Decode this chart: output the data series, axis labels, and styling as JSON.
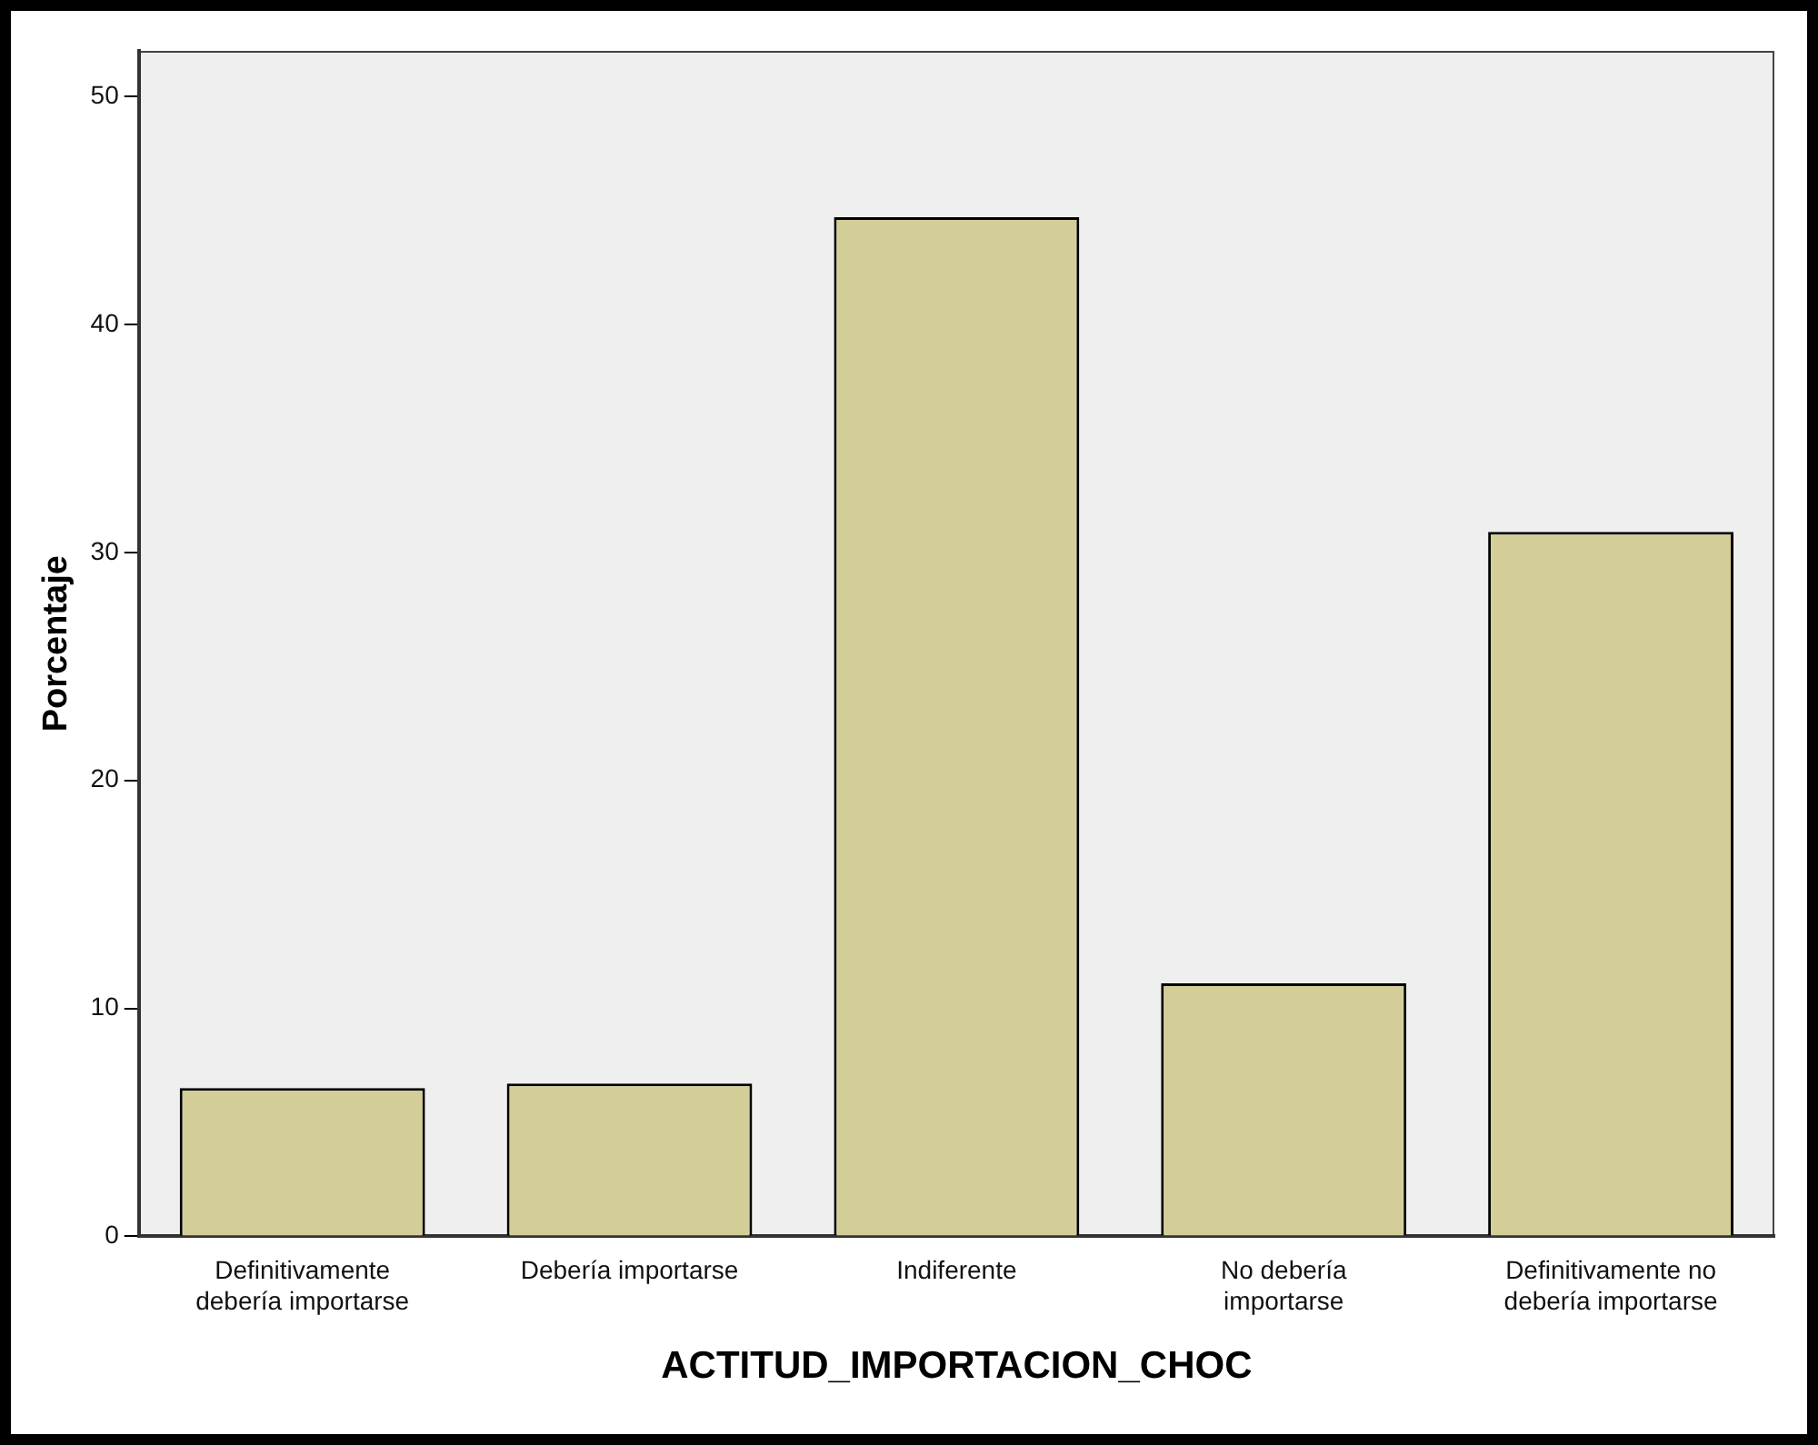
{
  "chart_data": {
    "type": "bar",
    "categories": [
      "Definitivamente debería importarse",
      "Debería importarse",
      "Indiferente",
      "No debería importarse",
      "Definitivamente no debería importarse"
    ],
    "values": [
      6.5,
      6.7,
      44.7,
      11.1,
      30.9
    ],
    "color": "#d3ce98",
    "xlabel": "ACTITUD_IMPORTACION_CHOC",
    "ylabel": "Porcentaje",
    "ylim": [
      0,
      52
    ],
    "yticks": [
      0,
      10,
      20,
      30,
      40,
      50
    ],
    "grid": false
  }
}
